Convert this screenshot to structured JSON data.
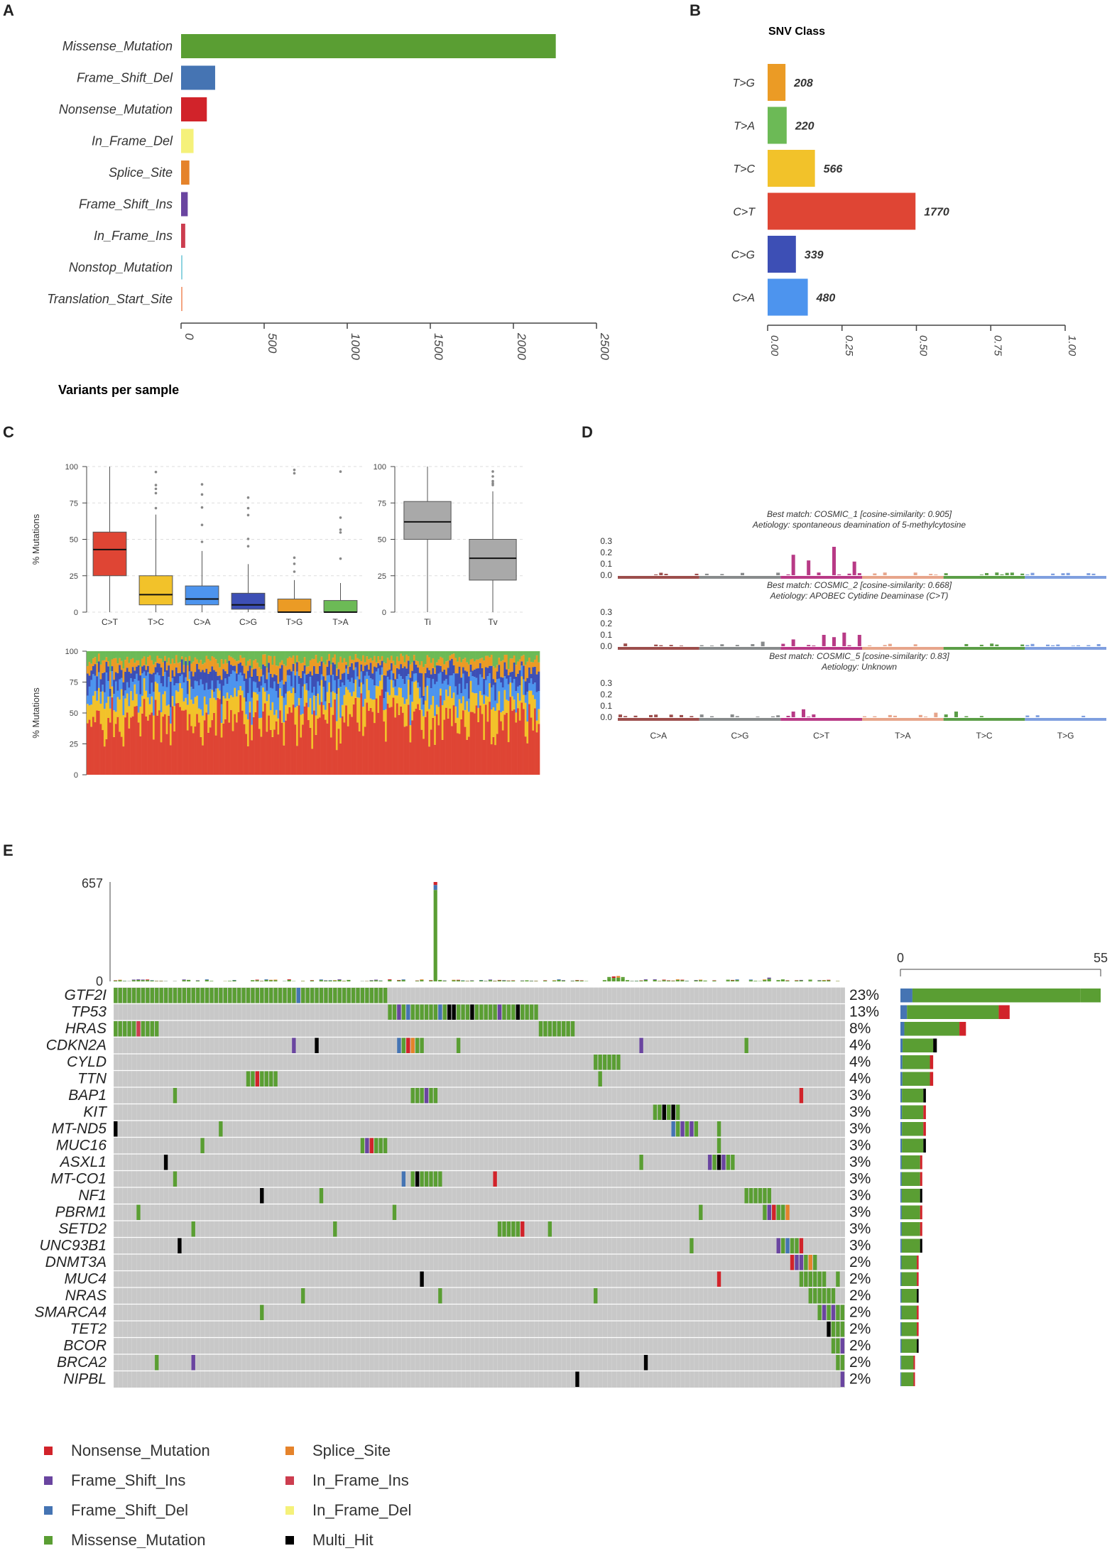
{
  "colors": {
    "Missense_Mutation": "#5a9e33",
    "Frame_Shift_Del": "#4574b3",
    "Nonsense_Mutation": "#d1232a",
    "In_Frame_Del": "#f5f17a",
    "Splice_Site": "#e5832b",
    "Frame_Shift_Ins": "#6a45a0",
    "In_Frame_Ins": "#cc3d4f",
    "Nonstop_Mutation": "#8fd3e0",
    "Translation_Start_Site": "#f4a582",
    "Multi_Hit": "#000000",
    "grey": "#c8c8c8",
    "T>G": "#eb9b25",
    "T>A": "#6cba56",
    "T>C": "#f2c22a",
    "C>T": "#df4534",
    "C>G": "#3d4fb5",
    "C>A": "#4d94ee",
    "Ti": "#a9a9a9",
    "Tv": "#a9a9a9"
  },
  "panel_labels": {
    "a": "A",
    "b": "B",
    "c": "C",
    "d": "D",
    "e": "E"
  },
  "chart_data": [
    {
      "id": "A",
      "type": "bar",
      "orientation": "horizontal",
      "categories": [
        "Missense_Mutation",
        "Frame_Shift_Del",
        "Nonsense_Mutation",
        "In_Frame_Del",
        "Splice_Site",
        "Frame_Shift_Ins",
        "In_Frame_Ins",
        "Nonstop_Mutation",
        "Translation_Start_Site"
      ],
      "values": [
        2255,
        205,
        155,
        75,
        50,
        40,
        25,
        5,
        5
      ],
      "xlim": [
        0,
        2500
      ],
      "xticks": [
        0,
        500,
        1000,
        1500,
        2000,
        2500
      ],
      "xlabel": "Variants per sample"
    },
    {
      "id": "B",
      "type": "bar",
      "orientation": "horizontal",
      "title": "SNV Class",
      "categories": [
        "T>G",
        "T>A",
        "T>C",
        "C>T",
        "C>G",
        "C>A"
      ],
      "values": [
        0.06,
        0.064,
        0.159,
        0.497,
        0.095,
        0.135
      ],
      "labels": [
        "208",
        "220",
        "566",
        "1770",
        "339",
        "480"
      ],
      "xlim": [
        0,
        1
      ],
      "xticks": [
        "0.00",
        "0.25",
        "0.50",
        "0.75",
        "1.00"
      ]
    },
    {
      "id": "C1",
      "type": "box",
      "ylabel": "% Mutations",
      "ylim": [
        0,
        100
      ],
      "yticks": [
        0,
        25,
        50,
        75,
        100
      ],
      "categories": [
        "C>T",
        "T>C",
        "C>A",
        "C>G",
        "T>G",
        "T>A"
      ],
      "boxes": [
        {
          "min": 0,
          "q1": 25,
          "median": 43,
          "q3": 55,
          "max": 100
        },
        {
          "min": 0,
          "q1": 5,
          "median": 12,
          "q3": 25,
          "max": 67
        },
        {
          "min": 0,
          "q1": 5,
          "median": 9,
          "q3": 18,
          "max": 42
        },
        {
          "min": 0,
          "q1": 2,
          "median": 5,
          "q3": 13,
          "max": 33
        },
        {
          "min": 0,
          "q1": 0,
          "median": 0,
          "q3": 9,
          "max": 22
        },
        {
          "min": 0,
          "q1": 0,
          "median": 0,
          "q3": 8,
          "max": 20
        }
      ]
    },
    {
      "id": "C2",
      "type": "box",
      "ylim": [
        0,
        100
      ],
      "yticks": [
        0,
        25,
        50,
        75,
        100
      ],
      "categories": [
        "Ti",
        "Tv"
      ],
      "boxes": [
        {
          "min": 0,
          "q1": 50,
          "median": 62,
          "q3": 76,
          "max": 100
        },
        {
          "min": 0,
          "q1": 22,
          "median": 37,
          "q3": 50,
          "max": 83
        }
      ]
    },
    {
      "id": "C3",
      "type": "stacked_bar",
      "ylabel": "% Mutations",
      "ylim": [
        0,
        100
      ],
      "yticks": [
        0,
        25,
        50,
        75,
        100
      ],
      "series_order": [
        "C>T",
        "T>C",
        "C>A",
        "C>G",
        "T>G",
        "T>A"
      ],
      "mean_fractions": [
        0.45,
        0.17,
        0.13,
        0.1,
        0.08,
        0.07
      ],
      "n_samples": 240
    },
    {
      "id": "D",
      "type": "bar",
      "yticks": [
        "0.3",
        "0.2",
        "0.1",
        "0.0"
      ],
      "categories": [
        "C>A",
        "C>G",
        "C>T",
        "T>A",
        "T>C",
        "T>G"
      ],
      "category_colors": [
        "#9c4e4c",
        "#888b8c",
        "#b83a86",
        "#e7a58b",
        "#5b9e47",
        "#7f9fdf"
      ],
      "signatures": [
        {
          "title": "Best match: COSMIC_1 [cosine-similarity: 0.905]",
          "subtitle": "Aetiology: spontaneous deamination of 5-methylcytosine",
          "peaks": [
            [
              34,
              0.18
            ],
            [
              37,
              0.13
            ],
            [
              42,
              0.25
            ],
            [
              46,
              0.12
            ]
          ]
        },
        {
          "title": "Best match: COSMIC_2 [cosine-similarity: 0.668]",
          "subtitle": "Aetiology: APOBEC Cytidine Deaminase (C>T)",
          "peaks": [
            [
              28,
              0.04
            ],
            [
              34,
              0.06
            ],
            [
              40,
              0.1
            ],
            [
              42,
              0.08
            ],
            [
              44,
              0.12
            ],
            [
              47,
              0.1
            ]
          ]
        },
        {
          "title": "Best match: COSMIC_5 [cosine-similarity: 0.83]",
          "subtitle": "Aetiology: Unknown",
          "peaks": [
            [
              34,
              0.05
            ],
            [
              36,
              0.07
            ],
            [
              62,
              0.04
            ],
            [
              66,
              0.05
            ]
          ]
        }
      ]
    },
    {
      "id": "E",
      "type": "heatmap",
      "tmb_max": "657",
      "tmb_min": "0",
      "count_axis": [
        "0",
        "55"
      ],
      "genes": [
        "GTF2I",
        "TP53",
        "HRAS",
        "CDKN2A",
        "CYLD",
        "TTN",
        "BAP1",
        "KIT",
        "MT-ND5",
        "MUC16",
        "ASXL1",
        "MT-CO1",
        "NF1",
        "PBRM1",
        "SETD2",
        "UNC93B1",
        "DNMT3A",
        "MUC4",
        "NRAS",
        "SMARCA4",
        "TET2",
        "BCOR",
        "BRCA2",
        "NIPBL"
      ],
      "percents": [
        "23%",
        "13%",
        "8%",
        "4%",
        "4%",
        "4%",
        "3%",
        "3%",
        "3%",
        "3%",
        "3%",
        "3%",
        "3%",
        "3%",
        "3%",
        "3%",
        "2%",
        "2%",
        "2%",
        "2%",
        "2%",
        "2%",
        "2%",
        "2%"
      ],
      "counts": [
        55,
        30,
        18,
        10,
        9,
        9,
        7,
        7,
        7,
        7,
        6,
        6,
        6,
        6,
        6,
        6,
        5,
        5,
        5,
        5,
        5,
        5,
        4,
        4
      ],
      "legend": [
        "Nonsense_Mutation",
        "Splice_Site",
        "Frame_Shift_Ins",
        "In_Frame_Ins",
        "Frame_Shift_Del",
        "In_Frame_Del",
        "Missense_Mutation",
        "Multi_Hit"
      ]
    }
  ]
}
